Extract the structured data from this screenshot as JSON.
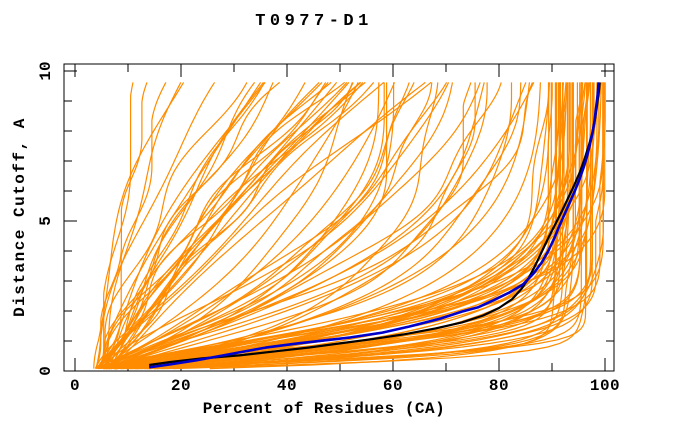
{
  "chart_data": {
    "type": "line",
    "title": "T0977-D1",
    "xlabel": "Percent of Residues (CA)",
    "ylabel": "Distance Cutoff, A",
    "xlim": [
      -2.1,
      101.7
    ],
    "ylim": [
      0,
      10.23
    ],
    "grid": false,
    "legend": null,
    "background_color": "#FFFFFF",
    "axis_color": "#000000",
    "xticks": {
      "major": [
        0,
        20,
        40,
        60,
        80,
        100
      ],
      "minor": [
        10,
        30,
        50,
        70,
        90
      ]
    },
    "yticks": {
      "major": [
        0,
        5,
        10
      ],
      "minor": [
        1,
        2,
        3,
        4,
        6,
        7,
        8,
        9
      ]
    },
    "curves_start": {
      "x_range": [
        3.5,
        6.5
      ],
      "y": 0.08
    },
    "curves_stop_y": 9.62,
    "ensemble": {
      "name": "predicted model GDT curves (all models)",
      "color": "#FF8C00",
      "count": 120,
      "seed": 11,
      "line_width": 1.2,
      "families": [
        {
          "name": "good",
          "type": "saturating",
          "weight": 0.48,
          "xmax": [
            88,
            100.3
          ],
          "tau": [
            0.35,
            2.2
          ],
          "k": [
            0.85,
            1.6
          ],
          "wobble": [
            0.2,
            0.9
          ]
        },
        {
          "name": "medium",
          "type": "saturating",
          "weight": 0.22,
          "xmax": [
            55,
            92
          ],
          "tau": [
            2.2,
            5.5
          ],
          "k": [
            0.9,
            1.4
          ],
          "wobble": [
            0.4,
            1.5
          ]
        },
        {
          "name": "poor",
          "type": "steep",
          "weight": 0.3,
          "a": [
            0.2,
            5.5
          ],
          "b": [
            0,
            0.18
          ],
          "wobble": [
            0.3,
            1.8
          ]
        }
      ]
    },
    "highlighted": [
      {
        "name": "highlighted-model-black",
        "color": "#000000",
        "line_width": 2.2,
        "points": [
          [
            14,
            0.2
          ],
          [
            18,
            0.3
          ],
          [
            24,
            0.42
          ],
          [
            31,
            0.52
          ],
          [
            38,
            0.66
          ],
          [
            44,
            0.78
          ],
          [
            50,
            0.92
          ],
          [
            56,
            1.06
          ],
          [
            62,
            1.22
          ],
          [
            68,
            1.42
          ],
          [
            73,
            1.62
          ],
          [
            77,
            1.85
          ],
          [
            80,
            2.1
          ],
          [
            82.5,
            2.4
          ],
          [
            84.3,
            2.75
          ],
          [
            85.6,
            3.1
          ],
          [
            86.8,
            3.5
          ],
          [
            88,
            3.95
          ],
          [
            89.2,
            4.4
          ],
          [
            90.5,
            4.85
          ],
          [
            91.8,
            5.3
          ],
          [
            93,
            5.75
          ],
          [
            94.2,
            6.2
          ],
          [
            95.3,
            6.65
          ],
          [
            96.2,
            7.1
          ],
          [
            97,
            7.55
          ],
          [
            97.7,
            8.0
          ],
          [
            98.2,
            8.5
          ],
          [
            98.6,
            9.0
          ],
          [
            98.9,
            9.4
          ],
          [
            99,
            9.62
          ]
        ]
      },
      {
        "name": "highlighted-model-navy",
        "color": "#0000CD",
        "line_width": 2.6,
        "points": [
          [
            14,
            0.12
          ],
          [
            18,
            0.22
          ],
          [
            23,
            0.36
          ],
          [
            28,
            0.52
          ],
          [
            31,
            0.62
          ],
          [
            36,
            0.78
          ],
          [
            42,
            0.92
          ],
          [
            47,
            1.02
          ],
          [
            52,
            1.12
          ],
          [
            58,
            1.28
          ],
          [
            63,
            1.48
          ],
          [
            69,
            1.75
          ],
          [
            73,
            1.98
          ],
          [
            76,
            2.12
          ],
          [
            79,
            2.36
          ],
          [
            82,
            2.62
          ],
          [
            84.5,
            2.88
          ],
          [
            86.5,
            3.25
          ],
          [
            88,
            3.6
          ],
          [
            89.3,
            4.0
          ],
          [
            90.5,
            4.45
          ],
          [
            91.3,
            4.8
          ],
          [
            92.3,
            5.2
          ],
          [
            93.3,
            5.6
          ],
          [
            94.3,
            6.0
          ],
          [
            95.2,
            6.4
          ],
          [
            96,
            6.8
          ],
          [
            96.6,
            7.15
          ],
          [
            97.1,
            7.5
          ],
          [
            97.6,
            7.9
          ],
          [
            98,
            8.3
          ],
          [
            98.3,
            8.75
          ],
          [
            98.6,
            9.2
          ],
          [
            98.8,
            9.62
          ]
        ]
      }
    ]
  }
}
